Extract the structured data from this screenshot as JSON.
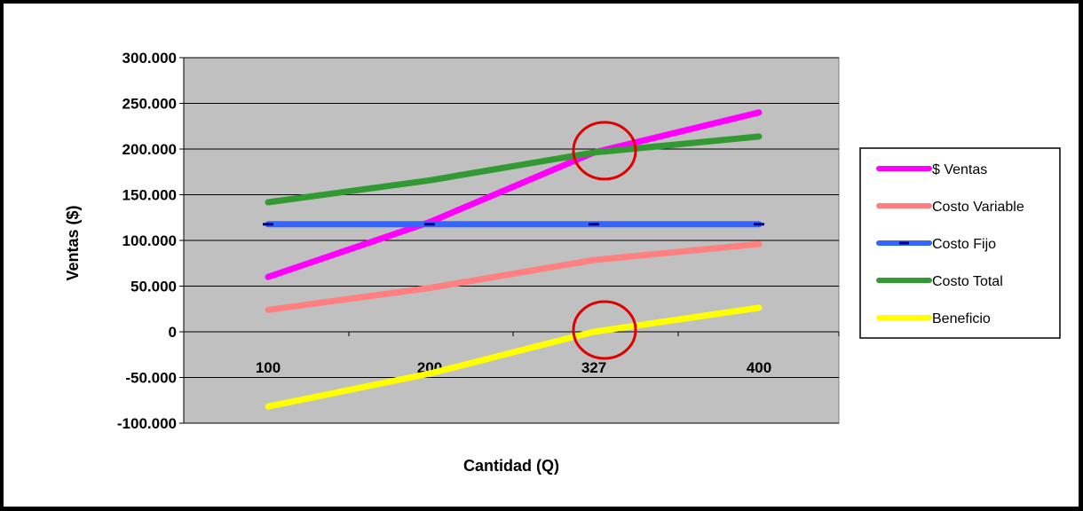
{
  "chart_data": {
    "type": "line",
    "title": "",
    "xlabel": "Cantidad (Q)",
    "ylabel": "Ventas ($)",
    "categories": [
      "100",
      "200",
      "327",
      "400"
    ],
    "yticks": [
      "300.000",
      "250.000",
      "200.000",
      "150.000",
      "100.000",
      "50.000",
      "0",
      "-50.000",
      "-100.000"
    ],
    "ylim": [
      -100000,
      300000
    ],
    "grid": true,
    "legend_position": "right",
    "series": [
      {
        "name": "$ Ventas",
        "color": "#ff00ff",
        "values": [
          60000,
          120000,
          196200,
          240000
        ]
      },
      {
        "name": "Costo Variable",
        "color": "#ff8080",
        "values": [
          24000,
          48000,
          78500,
          96000
        ]
      },
      {
        "name": "Costo Fijo",
        "color": "#3366ff",
        "marker": "dash",
        "values": [
          117700,
          117700,
          117700,
          117700
        ]
      },
      {
        "name": "Costo Total",
        "color": "#339933",
        "values": [
          141700,
          165700,
          196200,
          213700
        ]
      },
      {
        "name": "Beneficio",
        "color": "#ffff00",
        "values": [
          -81700,
          -45700,
          0,
          26300
        ]
      }
    ],
    "annotations": [
      {
        "type": "circle",
        "color": "#e00000",
        "x": "327",
        "y": 196200
      },
      {
        "type": "circle",
        "color": "#e00000",
        "x": "327",
        "y": 0
      }
    ]
  }
}
